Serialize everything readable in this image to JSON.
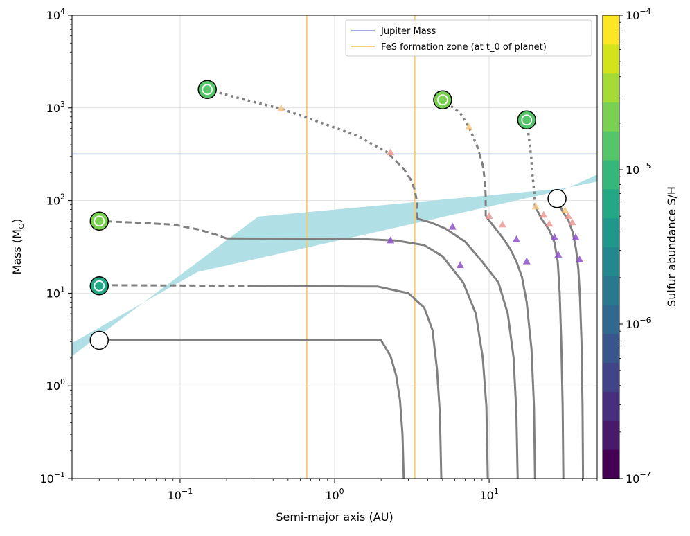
{
  "chart_data": {
    "type": "line",
    "xlabel": "Semi-major axis (AU)",
    "ylabel_main": "Mass (M",
    "ylabel_sub": "⊕",
    "ylabel_close": ")",
    "x_scale": "log",
    "y_scale": "log",
    "xlim": [
      0.02,
      50
    ],
    "ylim": [
      0.1,
      10000
    ],
    "grid": true,
    "x_ticks": [
      {
        "value": 0.1,
        "base": "10",
        "exp": "−1"
      },
      {
        "value": 1,
        "base": "10",
        "exp": "0"
      },
      {
        "value": 10,
        "base": "10",
        "exp": "1"
      }
    ],
    "y_ticks": [
      {
        "value": 0.1,
        "base": "10",
        "exp": "−1"
      },
      {
        "value": 1,
        "base": "10",
        "exp": "0"
      },
      {
        "value": 10,
        "base": "10",
        "exp": "1"
      },
      {
        "value": 100,
        "base": "10",
        "exp": "2"
      },
      {
        "value": 1000,
        "base": "10",
        "exp": "3"
      },
      {
        "value": 10000,
        "base": "10",
        "exp": "4"
      }
    ],
    "legend": {
      "placement": "top-right",
      "entries": [
        {
          "label": "Jupiter Mass",
          "color": "#a5aae6"
        },
        {
          "label": "FeS formation zone (at t_0 of planet)",
          "color": "#f5cb70"
        }
      ]
    },
    "jupiter_mass": 318,
    "fes_zone_x": [
      0.66,
      3.3
    ],
    "colorbar": {
      "label": "Sulfur abundance S/H",
      "range": [
        1e-07,
        0.0001
      ],
      "ticks": [
        {
          "value": 1e-07,
          "base": "10",
          "exp": "−7"
        },
        {
          "value": 1e-06,
          "base": "10",
          "exp": "−6"
        },
        {
          "value": 1e-05,
          "base": "10",
          "exp": "−5"
        },
        {
          "value": 0.0001,
          "base": "10",
          "exp": "−4"
        }
      ],
      "colors": [
        "#440154",
        "#481a6c",
        "#472f7d",
        "#414487",
        "#39568c",
        "#31688e",
        "#2a788e",
        "#23888e",
        "#1f988b",
        "#22a884",
        "#35b779",
        "#54c568",
        "#7ad151",
        "#a5db36",
        "#d2e21b",
        "#fde725"
      ]
    },
    "shaded_region": {
      "color": "#b0dfe5",
      "polygon": [
        [
          0.02,
          2.1
        ],
        [
          0.02,
          2.9
        ],
        [
          0.13,
          17
        ],
        [
          0.6,
          30
        ],
        [
          30,
          130
        ],
        [
          50,
          190
        ],
        [
          50,
          160
        ],
        [
          30,
          135
        ],
        [
          0.32,
          67
        ],
        [
          0.02,
          2.1
        ]
      ]
    },
    "tracks": [
      {
        "name": "track-1",
        "final": {
          "a": 0.03,
          "m": 3.1,
          "sh": null
        },
        "solid": [
          [
            2.8,
            0.1
          ],
          [
            2.75,
            0.3
          ],
          [
            2.65,
            0.7
          ],
          [
            2.5,
            1.3
          ],
          [
            2.3,
            2.1
          ],
          [
            2.0,
            3.1
          ],
          [
            0.03,
            3.1
          ]
        ],
        "dashed": [],
        "dotted": [],
        "markers": []
      },
      {
        "name": "track-2",
        "final": {
          "a": 0.03,
          "m": 12,
          "sh": 5e-06
        },
        "solid": [
          [
            4.9,
            0.1
          ],
          [
            4.8,
            0.5
          ],
          [
            4.6,
            1.5
          ],
          [
            4.3,
            4
          ],
          [
            3.8,
            7
          ],
          [
            3.0,
            10
          ],
          [
            1.9,
            11.8
          ],
          [
            0.3,
            12
          ]
        ],
        "dashed": [
          [
            0.3,
            12
          ],
          [
            0.03,
            12.2
          ]
        ],
        "dotted": [],
        "markers": [
          {
            "a": 6.5,
            "m": 20,
            "c": "purple"
          }
        ]
      },
      {
        "name": "track-3",
        "final": {
          "a": 0.03,
          "m": 60,
          "sh": 2e-05
        },
        "solid": [
          [
            9.8,
            0.1
          ],
          [
            9.6,
            0.6
          ],
          [
            9.1,
            2
          ],
          [
            8.2,
            6
          ],
          [
            6.8,
            13
          ],
          [
            5.0,
            25
          ],
          [
            3.8,
            33
          ],
          [
            2.5,
            37
          ],
          [
            1.5,
            38.5
          ],
          [
            0.2,
            39
          ]
        ],
        "dashed": [
          [
            0.2,
            39
          ],
          [
            0.17,
            43
          ],
          [
            0.13,
            49
          ],
          [
            0.09,
            55
          ],
          [
            0.05,
            58
          ],
          [
            0.03,
            60
          ]
        ],
        "dotted": [],
        "markers": [
          {
            "a": 2.3,
            "m": 37,
            "c": "purple"
          }
        ]
      },
      {
        "name": "track-4",
        "final": {
          "a": 0.15,
          "m": 1580,
          "sh": 1.5e-05
        },
        "solid": [
          [
            15.3,
            0.1
          ],
          [
            15.0,
            0.5
          ],
          [
            14.4,
            2
          ],
          [
            13.2,
            6
          ],
          [
            11.5,
            13
          ],
          [
            9.0,
            22
          ],
          [
            7.0,
            36
          ],
          [
            5.2,
            50
          ],
          [
            4.2,
            58
          ],
          [
            3.4,
            64
          ]
        ],
        "dashed": [
          [
            3.4,
            64
          ],
          [
            3.4,
            100
          ],
          [
            3.3,
            130
          ],
          [
            3.1,
            170
          ],
          [
            2.8,
            220
          ],
          [
            2.2,
            330
          ]
        ],
        "dotted": [
          [
            2.2,
            330
          ],
          [
            1.4,
            500
          ],
          [
            0.8,
            700
          ],
          [
            0.45,
            980
          ],
          [
            0.25,
            1250
          ],
          [
            0.15,
            1580
          ]
        ],
        "markers": [
          {
            "a": 5.8,
            "m": 52,
            "c": "purple"
          },
          {
            "a": 2.3,
            "m": 330,
            "c": "salmon"
          },
          {
            "a": 0.45,
            "m": 980,
            "c": "orange"
          }
        ]
      },
      {
        "name": "track-5",
        "final": {
          "a": 5.0,
          "m": 1220,
          "sh": 2e-05
        },
        "solid": [
          [
            19.8,
            0.1
          ],
          [
            19.5,
            0.6
          ],
          [
            18.8,
            2.5
          ],
          [
            17.5,
            8
          ],
          [
            16.3,
            15
          ],
          [
            15.0,
            22
          ],
          [
            13.7,
            30
          ],
          [
            12.2,
            40
          ],
          [
            10.5,
            55
          ],
          [
            9.5,
            68
          ]
        ],
        "dashed": [
          [
            9.5,
            68
          ],
          [
            9.5,
            110
          ],
          [
            9.4,
            160
          ],
          [
            9.1,
            240
          ],
          [
            8.4,
            380
          ]
        ],
        "dotted": [
          [
            8.4,
            380
          ],
          [
            7.4,
            620
          ],
          [
            6.5,
            880
          ],
          [
            5.0,
            1220
          ]
        ],
        "markers": [
          {
            "a": 17.5,
            "m": 22,
            "c": "purple"
          },
          {
            "a": 15.0,
            "m": 38,
            "c": "purple"
          },
          {
            "a": 12.2,
            "m": 55,
            "c": "salmon"
          },
          {
            "a": 10.0,
            "m": 68,
            "c": "salmon"
          },
          {
            "a": 7.4,
            "m": 620,
            "c": "orange"
          }
        ]
      },
      {
        "name": "track-6",
        "final": {
          "a": 17.5,
          "m": 740,
          "sh": 1.5e-05
        },
        "solid": [
          [
            30.2,
            0.1
          ],
          [
            29.9,
            0.6
          ],
          [
            29.3,
            3
          ],
          [
            28.6,
            10
          ],
          [
            27.8,
            22
          ],
          [
            26.5,
            35
          ],
          [
            24.5,
            48
          ],
          [
            22.0,
            62
          ],
          [
            20.5,
            78
          ],
          [
            19.8,
            88
          ]
        ],
        "dashed": [],
        "dotted": [
          [
            19.8,
            88
          ],
          [
            19.5,
            130
          ],
          [
            19.0,
            200
          ],
          [
            18.7,
            300
          ],
          [
            17.5,
            740
          ]
        ],
        "markers": [
          {
            "a": 28.0,
            "m": 26,
            "c": "purple"
          },
          {
            "a": 26.5,
            "m": 40,
            "c": "purple"
          },
          {
            "a": 24.5,
            "m": 56,
            "c": "salmon"
          },
          {
            "a": 22.5,
            "m": 70,
            "c": "salmon"
          },
          {
            "a": 20.0,
            "m": 86,
            "c": "orange"
          }
        ]
      },
      {
        "name": "track-7",
        "final": {
          "a": 27.5,
          "m": 105,
          "sh": null
        },
        "solid": [
          [
            40.5,
            0.1
          ],
          [
            40.2,
            0.6
          ],
          [
            39.6,
            3
          ],
          [
            38.7,
            9
          ],
          [
            37.8,
            18
          ],
          [
            36.5,
            30
          ],
          [
            34.8,
            45
          ],
          [
            32.5,
            62
          ],
          [
            30.0,
            75
          ],
          [
            27.5,
            105
          ]
        ],
        "dashed": [],
        "dotted": [],
        "markers": [
          {
            "a": 38.5,
            "m": 23,
            "c": "purple"
          },
          {
            "a": 36.3,
            "m": 40,
            "c": "purple"
          },
          {
            "a": 34.5,
            "m": 58,
            "c": "salmon"
          },
          {
            "a": 32.5,
            "m": 68,
            "c": "salmon"
          },
          {
            "a": 31.0,
            "m": 78,
            "c": "orange"
          }
        ]
      }
    ],
    "marker_colors": {
      "purple": "#8e51c8",
      "salmon": "#ec9b96",
      "orange": "#f8c67f"
    }
  }
}
